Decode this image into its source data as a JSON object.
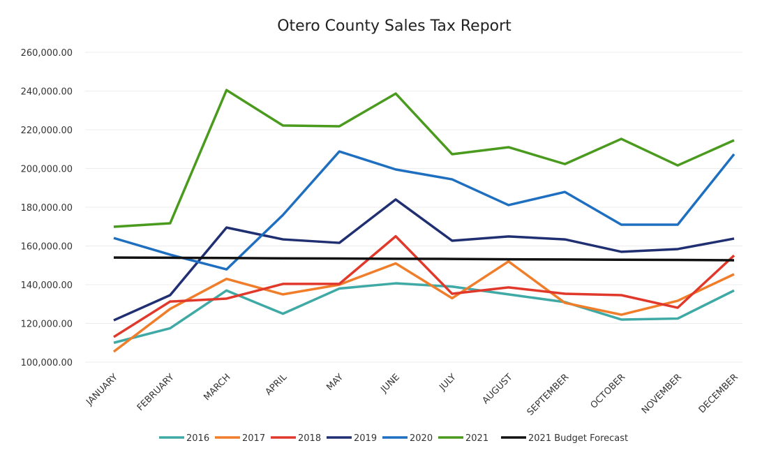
{
  "chart_data": {
    "type": "line",
    "title": "Otero County Sales Tax Report",
    "categories": [
      "JANUARY",
      "FEBRUARY",
      "MARCH",
      "APRIL",
      "MAY",
      "JUNE",
      "JULY",
      "AUGUST",
      "SEPTEMBER",
      "OCTOBER",
      "NOVEMBER",
      "DECEMBER"
    ],
    "ylim": [
      100000,
      260000
    ],
    "yticks": [
      {
        "value": 100000,
        "label": "100,000.00"
      },
      {
        "value": 120000,
        "label": "120,000.00"
      },
      {
        "value": 140000,
        "label": "140,000.00"
      },
      {
        "value": 160000,
        "label": "160,000.00"
      },
      {
        "value": 180000,
        "label": "180,000.00"
      },
      {
        "value": 200000,
        "label": "200,000.00"
      },
      {
        "value": 220000,
        "label": "220,000.00"
      },
      {
        "value": 240000,
        "label": "240,000.00"
      },
      {
        "value": 260000,
        "label": "260,000.00"
      }
    ],
    "grid": true,
    "legend": "bottom",
    "series": [
      {
        "name": "2016",
        "color": "#3fa9a5",
        "values": [
          110000,
          117500,
          137000,
          125000,
          138000,
          140700,
          139000,
          135000,
          131000,
          122000,
          122500,
          137000
        ]
      },
      {
        "name": "2017",
        "color": "#f07d2a",
        "values": [
          105400,
          127500,
          143000,
          135000,
          140000,
          151000,
          133000,
          152000,
          130600,
          124500,
          131700,
          145400
        ]
      },
      {
        "name": "2018",
        "color": "#e0392b",
        "values": [
          113000,
          131300,
          132800,
          140400,
          140400,
          165000,
          135300,
          138600,
          135300,
          134600,
          128100,
          155100
        ]
      },
      {
        "name": "2019",
        "color": "#1f2f72",
        "values": [
          121600,
          134600,
          169500,
          163400,
          161600,
          184000,
          162700,
          164900,
          163400,
          157000,
          158400,
          163800
        ]
      },
      {
        "name": "2020",
        "color": "#1f6fc0",
        "values": [
          164100,
          155500,
          147900,
          176000,
          208800,
          199500,
          194400,
          181100,
          187900,
          171000,
          171000,
          207400
        ]
      },
      {
        "name": "2021",
        "color": "#4a9a1e",
        "values": [
          169900,
          171700,
          240500,
          222200,
          221800,
          238700,
          207400,
          211000,
          202300,
          215300,
          201600,
          214600
        ]
      },
      {
        "name": "2021 Budget Forecast",
        "color": "#111111",
        "values": [
          154000,
          153900,
          153800,
          153600,
          153500,
          153400,
          153300,
          153100,
          153000,
          152900,
          152800,
          152600
        ]
      }
    ]
  }
}
